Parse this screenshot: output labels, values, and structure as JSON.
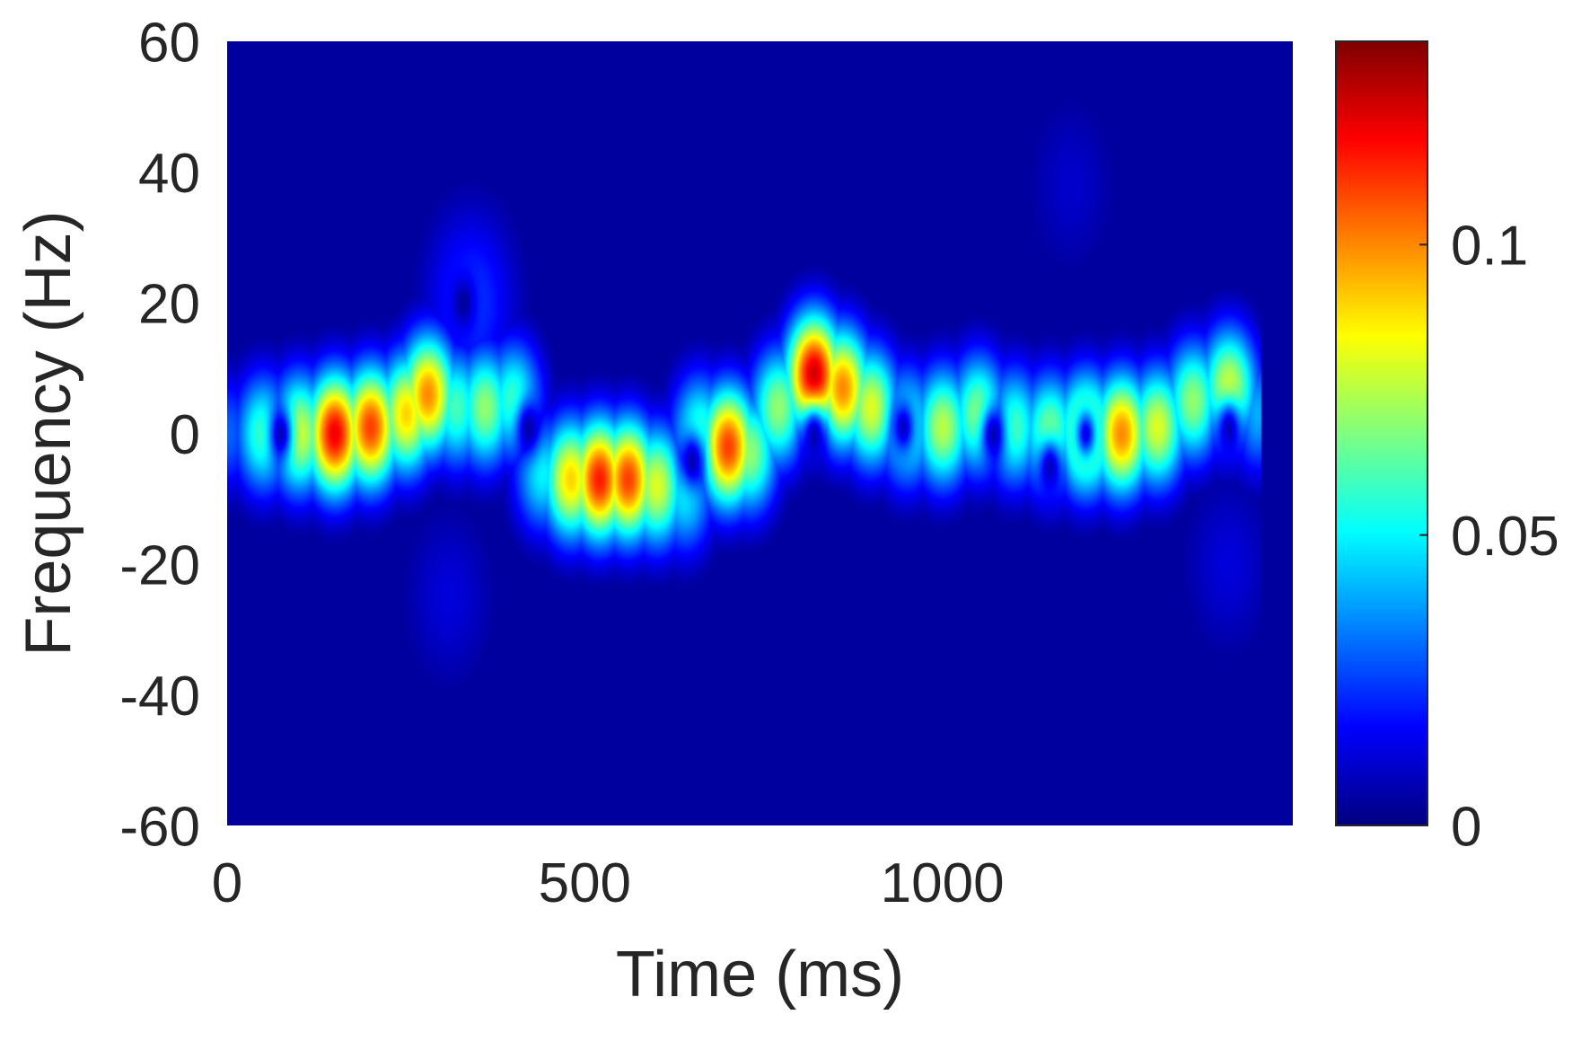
{
  "chart_data": {
    "type": "heatmap",
    "title": "",
    "xlabel": "Time (ms)",
    "ylabel": "Frequency (Hz)",
    "xlim": [
      0,
      1490
    ],
    "ylim": [
      -60,
      60
    ],
    "xticks": [
      0,
      500,
      1000
    ],
    "yticks": [
      60,
      40,
      20,
      0,
      -20,
      -40,
      -60
    ],
    "colormap": "jet",
    "clim": [
      0,
      0.135
    ],
    "colorbar_ticks": [
      0,
      0.05,
      0.1
    ],
    "data_extent_time": [
      0,
      1445
    ],
    "background_value": 0.004,
    "ridge": [
      {
        "t": 0,
        "f": 0,
        "v": 0.03
      },
      {
        "t": 50,
        "f": 0,
        "v": 0.06
      },
      {
        "t": 100,
        "f": 0,
        "v": 0.08
      },
      {
        "t": 150,
        "f": 0,
        "v": 0.12
      },
      {
        "t": 200,
        "f": 1,
        "v": 0.11
      },
      {
        "t": 250,
        "f": 3,
        "v": 0.09
      },
      {
        "t": 280,
        "f": 6,
        "v": 0.1
      },
      {
        "t": 320,
        "f": 4,
        "v": 0.06
      },
      {
        "t": 360,
        "f": 4,
        "v": 0.07
      },
      {
        "t": 400,
        "f": 5,
        "v": 0.06
      },
      {
        "t": 420,
        "f": 0,
        "v": 0.02
      },
      {
        "t": 440,
        "f": -6,
        "v": 0.05
      },
      {
        "t": 480,
        "f": -7,
        "v": 0.09
      },
      {
        "t": 520,
        "f": -7,
        "v": 0.115
      },
      {
        "t": 560,
        "f": -7,
        "v": 0.11
      },
      {
        "t": 600,
        "f": -8,
        "v": 0.08
      },
      {
        "t": 640,
        "f": -9,
        "v": 0.05
      },
      {
        "t": 660,
        "f": 0,
        "v": 0.06
      },
      {
        "t": 700,
        "f": -2,
        "v": 0.11
      },
      {
        "t": 730,
        "f": -3,
        "v": 0.07
      },
      {
        "t": 770,
        "f": 4,
        "v": 0.07
      },
      {
        "t": 820,
        "f": 9,
        "v": 0.125
      },
      {
        "t": 860,
        "f": 7,
        "v": 0.1
      },
      {
        "t": 900,
        "f": 4,
        "v": 0.08
      },
      {
        "t": 950,
        "f": 1,
        "v": 0.06
      },
      {
        "t": 1000,
        "f": 1,
        "v": 0.075
      },
      {
        "t": 1050,
        "f": 3,
        "v": 0.07
      },
      {
        "t": 1100,
        "f": 1,
        "v": 0.06
      },
      {
        "t": 1150,
        "f": 0,
        "v": 0.07
      },
      {
        "t": 1200,
        "f": 0,
        "v": 0.09
      },
      {
        "t": 1250,
        "f": 0,
        "v": 0.1
      },
      {
        "t": 1300,
        "f": 1,
        "v": 0.08
      },
      {
        "t": 1350,
        "f": 5,
        "v": 0.07
      },
      {
        "t": 1400,
        "f": 7,
        "v": 0.08
      },
      {
        "t": 1440,
        "f": 3,
        "v": 0.04
      }
    ],
    "nulls": [
      {
        "t": 75,
        "f": 0
      },
      {
        "t": 420,
        "f": 1
      },
      {
        "t": 650,
        "f": -4
      },
      {
        "t": 820,
        "f": 0
      },
      {
        "t": 945,
        "f": 1
      },
      {
        "t": 1070,
        "f": 0
      },
      {
        "t": 1200,
        "f": 0
      },
      {
        "t": 1400,
        "f": 1
      },
      {
        "t": 330,
        "f": 20
      },
      {
        "t": 1150,
        "f": -5
      }
    ],
    "faint_blobs": [
      {
        "t": 340,
        "f": 20,
        "v": 0.025
      },
      {
        "t": 1180,
        "f": 38,
        "v": 0.01
      },
      {
        "t": 310,
        "f": -25,
        "v": 0.012
      },
      {
        "t": 1400,
        "f": -20,
        "v": 0.012
      }
    ]
  }
}
